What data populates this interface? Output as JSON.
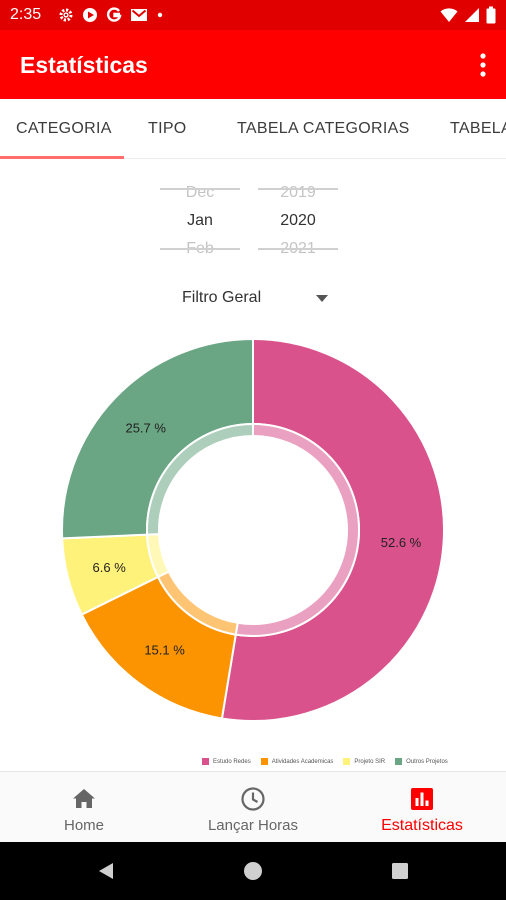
{
  "status_bar": {
    "time": "2:35",
    "left_icons": [
      "gear-icon",
      "play-icon",
      "google-icon",
      "gmail-icon",
      "dot-icon"
    ],
    "right_icons": [
      "wifi-icon",
      "signal-icon",
      "battery-icon"
    ]
  },
  "app_bar": {
    "title": "Estatísticas",
    "menu_icon": "more-vert-icon",
    "color": "#ff0000"
  },
  "tabs": [
    {
      "label": "CATEGORIA",
      "active": true
    },
    {
      "label": "TIPO",
      "active": false
    },
    {
      "label": "TABELA CATEGORIAS",
      "active": false
    },
    {
      "label": "TABELA",
      "active": false
    }
  ],
  "date_picker": {
    "month": {
      "prev": "Dec",
      "selected": "Jan",
      "next": "Feb"
    },
    "year": {
      "prev": "2019",
      "selected": "2020",
      "next": "2021"
    }
  },
  "filter": {
    "selected": "Filtro Geral"
  },
  "chart_data": {
    "type": "pie",
    "donut": true,
    "slices": [
      {
        "name": "Estudo Redes",
        "value": 52.6,
        "label": "52.6 %",
        "color": "#d9528c"
      },
      {
        "name": "Atividades Academicas",
        "value": 15.1,
        "label": "15.1 %",
        "color": "#fb9400"
      },
      {
        "name": "Projeto SIR",
        "value": 6.6,
        "label": "6.6 %",
        "color": "#fff27a"
      },
      {
        "name": "Outros Projetos",
        "value": 25.7,
        "label": "25.7 %",
        "color": "#6aa584"
      }
    ],
    "legend_position": "bottom-right"
  },
  "bottom_nav": [
    {
      "label": "Home",
      "icon": "home-icon",
      "active": false
    },
    {
      "label": "Lançar Horas",
      "icon": "clock-icon",
      "active": false
    },
    {
      "label": "Estatísticas",
      "icon": "bar-chart-icon",
      "active": true
    }
  ],
  "system_nav": [
    "back-icon",
    "home-circle-icon",
    "recents-icon"
  ]
}
